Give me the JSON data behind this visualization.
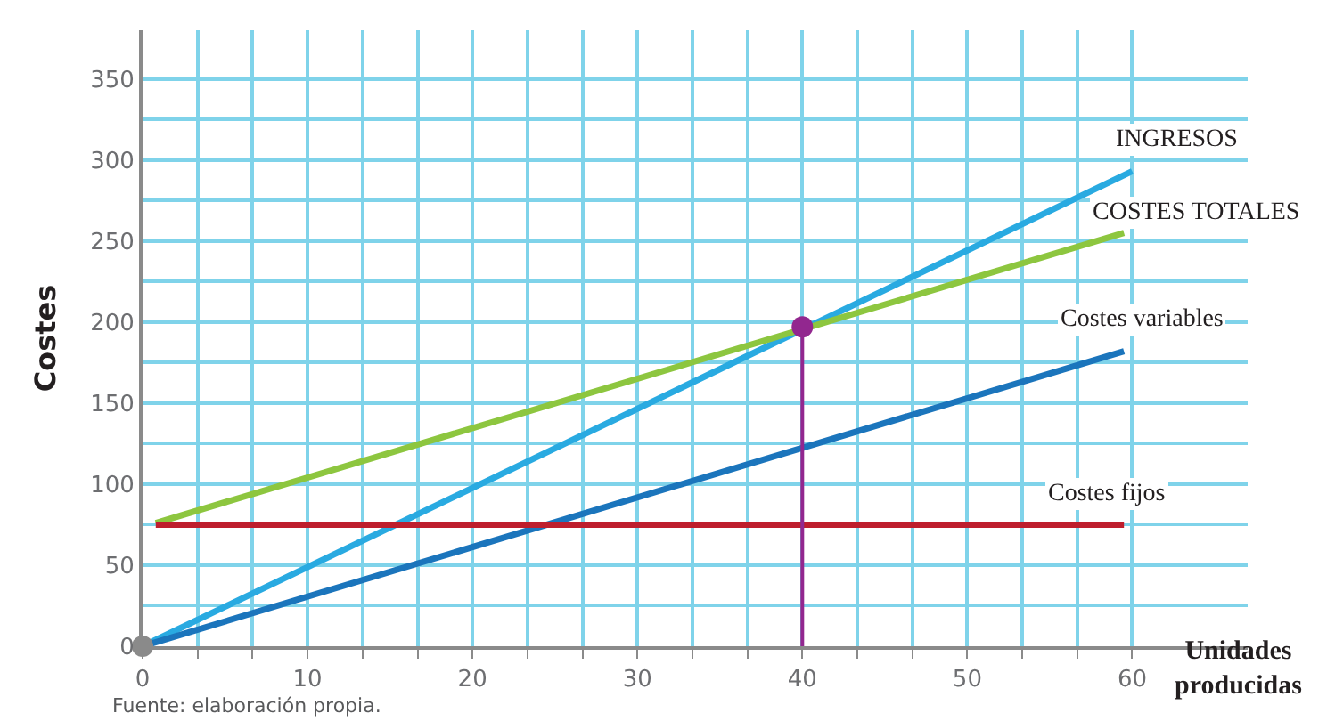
{
  "chart_data": {
    "type": "line",
    "xlabel": "Unidades producidas",
    "ylabel": "Costes",
    "xlim": [
      0,
      67
    ],
    "ylim": [
      0,
      380
    ],
    "xticks": [
      0,
      {
        "value": 3.33,
        "label": null
      },
      {
        "value": 6.67,
        "label": null
      },
      10,
      {
        "value": 13.33,
        "label": null
      },
      {
        "value": 16.67,
        "label": null
      },
      20,
      {
        "value": 23.33,
        "label": null
      },
      {
        "value": 26.67,
        "label": null
      },
      30,
      {
        "value": 33.33,
        "label": null
      },
      {
        "value": 36.67,
        "label": null
      },
      40,
      {
        "value": 43.33,
        "label": null
      },
      {
        "value": 46.67,
        "label": null
      },
      50,
      {
        "value": 53.33,
        "label": null
      },
      {
        "value": 56.67,
        "label": null
      },
      60
    ],
    "yticks": [
      0,
      {
        "value": 25,
        "label": null
      },
      50,
      {
        "value": 75,
        "label": null
      },
      100,
      {
        "value": 125,
        "label": null
      },
      150,
      {
        "value": 175,
        "label": null
      },
      200,
      {
        "value": 225,
        "label": null
      },
      250,
      {
        "value": 275,
        "label": null
      },
      300,
      {
        "value": 325,
        "label": null
      },
      350
    ],
    "grid": true,
    "legend": false,
    "marker": "none",
    "line_style": "solid",
    "series": [
      {
        "name": "INGRESOS",
        "color": "#29aae1",
        "x": [
          0,
          60
        ],
        "values": [
          0,
          293
        ]
      },
      {
        "name": "COSTES TOTALES",
        "color": "#8dc63f",
        "x": [
          0.8,
          59.5
        ],
        "values": [
          76,
          255
        ]
      },
      {
        "name": "Costes variables",
        "color": "#1b75bc",
        "x": [
          0,
          59.5
        ],
        "values": [
          0,
          182
        ]
      },
      {
        "name": "Costes fijos",
        "color": "#be1e2d",
        "x": [
          0.8,
          59.5
        ],
        "values": [
          75,
          75
        ]
      },
      {
        "color": "#92278f",
        "x": [
          40,
          40
        ],
        "values": [
          0,
          197
        ]
      },
      {
        "type": "scatter",
        "marker": "circle",
        "color": "#92278f",
        "x": [
          40
        ],
        "values": [
          197
        ]
      },
      {
        "type": "scatter",
        "marker": "circle",
        "color": "#8a8a8a",
        "x": [
          0
        ],
        "values": [
          0
        ]
      }
    ],
    "annotations": [
      "Fuente: elaboración propia."
    ]
  }
}
